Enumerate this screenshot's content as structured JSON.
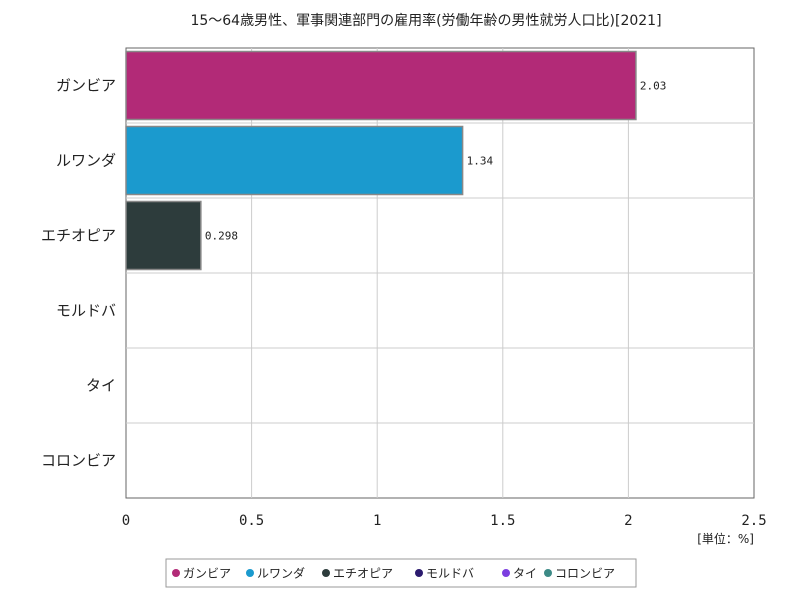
{
  "chart_data": {
    "type": "bar",
    "orientation": "horizontal",
    "title": "15～64歳男性、軍事関連部門の雇用率(労働年齢の男性就労人口比)[2021]",
    "categories": [
      "ガンビア",
      "ルワンダ",
      "エチオピア",
      "モルドバ",
      "タイ",
      "コロンビア"
    ],
    "values": [
      2.03,
      1.34,
      0.298,
      null,
      null,
      null
    ],
    "value_labels": [
      "2.03",
      "1.34",
      "0.298",
      "",
      "",
      ""
    ],
    "colors": [
      "#b22a77",
      "#1b9ace",
      "#2d3c3c",
      "#2b1a6e",
      "#7c3ee0",
      "#3c8a86"
    ],
    "xlim": [
      0,
      2.5
    ],
    "xticks": [
      "0",
      "0.5",
      "1",
      "1.5",
      "2",
      "2.5"
    ],
    "unit_label": "[単位：%]",
    "grid": true,
    "legend": {
      "position": "bottom-center",
      "entries": [
        "ガンビア",
        "ルワンダ",
        "エチオピア",
        "モルドバ",
        "タイ",
        "コロンビア"
      ]
    }
  }
}
